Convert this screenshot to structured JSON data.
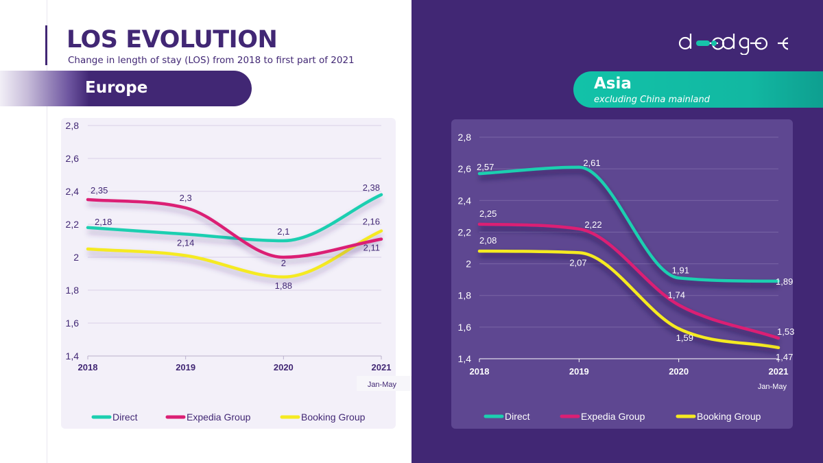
{
  "header": {
    "title": "LOS EVOLUTION",
    "subtitle": "Change in length of stay (LOS) from 2018 to first part of 2021",
    "logo_text": "d edge"
  },
  "regions": {
    "europe": {
      "label": "Europe"
    },
    "asia": {
      "label": "Asia",
      "sublabel": "excluding China mainland"
    }
  },
  "colors": {
    "purple": "#412774",
    "Direct": "#1ccfb0",
    "Expedia Group": "#db1f74",
    "Booking Group": "#f5ea22"
  },
  "chart_data": [
    {
      "type": "line",
      "title": "Europe",
      "categories": [
        "2018",
        "2019",
        "2020",
        "2021"
      ],
      "x_note": "Jan-May",
      "ylim": [
        1.4,
        2.8
      ],
      "yticks": [
        "1,4",
        "1,6",
        "1,8",
        "2",
        "2,2",
        "2,4",
        "2,6",
        "2,8"
      ],
      "grid": true,
      "legend": "bottom",
      "series": [
        {
          "name": "Direct",
          "values": [
            2.18,
            2.14,
            2.1,
            2.38
          ],
          "labels": [
            "2,18",
            "2,14",
            "2,1",
            "2,38"
          ]
        },
        {
          "name": "Expedia Group",
          "values": [
            2.35,
            2.3,
            2.0,
            2.11
          ],
          "labels": [
            "2,35",
            "2,3",
            "2",
            "2,11"
          ]
        },
        {
          "name": "Booking Group",
          "values": [
            2.05,
            2.01,
            1.88,
            2.16
          ],
          "labels": [
            "",
            "",
            "1,88",
            "2,16"
          ]
        }
      ]
    },
    {
      "type": "line",
      "title": "Asia",
      "subtitle": "excluding China mainland",
      "categories": [
        "2018",
        "2019",
        "2020",
        "2021"
      ],
      "x_note": "Jan-May",
      "ylim": [
        1.4,
        2.8
      ],
      "yticks": [
        "1,4",
        "1,6",
        "1,8",
        "2",
        "2,2",
        "2,4",
        "2,6",
        "2,8"
      ],
      "grid": true,
      "legend": "bottom",
      "series": [
        {
          "name": "Direct",
          "values": [
            2.57,
            2.61,
            1.91,
            1.89
          ],
          "labels": [
            "2,57",
            "2,61",
            "1,91",
            "1,89"
          ]
        },
        {
          "name": "Expedia Group",
          "values": [
            2.25,
            2.22,
            1.74,
            1.53
          ],
          "labels": [
            "2,25",
            "2,22",
            "1,74",
            "1,53"
          ]
        },
        {
          "name": "Booking Group",
          "values": [
            2.08,
            2.07,
            1.59,
            1.47
          ],
          "labels": [
            "2,08",
            "2,07",
            "1,59",
            "1,47"
          ]
        }
      ]
    }
  ]
}
